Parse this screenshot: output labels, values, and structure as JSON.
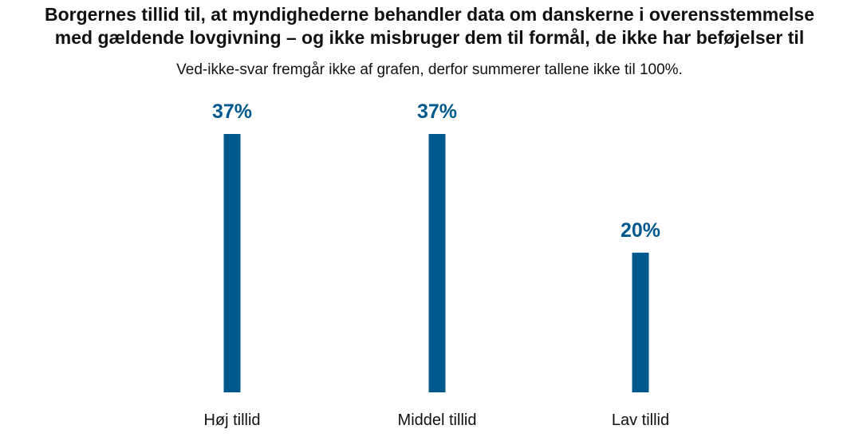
{
  "chart_data": {
    "type": "bar",
    "title_lines": [
      "Borgernes tillid til, at myndighederne behandler data om danskerne i overensstemmelse",
      "med gældende lovgivning – og ikke misbruger dem til formål, de ikke har beføjelser til"
    ],
    "subtitle": "Ved-ikke-svar fremgår ikke af grafen, derfor summerer tallene ikke til 100%.",
    "categories": [
      "Høj tillid",
      "Middel tillid",
      "Lav tillid"
    ],
    "values": [
      37,
      37,
      20
    ],
    "value_labels": [
      "37%",
      "37%",
      "20%"
    ],
    "ylim": [
      0,
      37
    ],
    "grid": false,
    "legend": "none",
    "colors": {
      "bar": "#00598c",
      "value_label": "#00598c",
      "text": "#111111"
    }
  }
}
